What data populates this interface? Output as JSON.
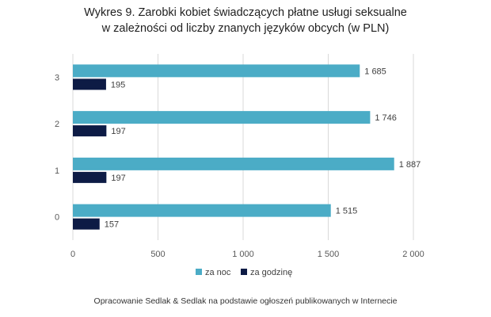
{
  "chart_data": {
    "type": "bar",
    "orientation": "horizontal",
    "title_line1": "Wykres 9. Zarobki kobiet świadczących płatne usługi seksualne",
    "title_line2": "w zależności od liczby znanych języków obcych (w PLN)",
    "categories": [
      "0",
      "1",
      "2",
      "3"
    ],
    "series": [
      {
        "name": "za noc",
        "color": "#4BACC6",
        "values": [
          1515,
          1887,
          1746,
          1685
        ],
        "labels": [
          "1 515",
          "1 887",
          "1 746",
          "1 685"
        ]
      },
      {
        "name": "za godzinę",
        "color": "#0D1B45",
        "values": [
          157,
          197,
          197,
          195
        ],
        "labels": [
          "157",
          "197",
          "197",
          "195"
        ]
      }
    ],
    "xlim": [
      0,
      2000
    ],
    "xticks": [
      0,
      500,
      1000,
      1500,
      2000
    ],
    "xtick_labels": [
      "0",
      "500",
      "1 000",
      "1 500",
      "2 000"
    ],
    "xlabel": "",
    "ylabel": "",
    "grid": true,
    "legend_position": "bottom"
  },
  "source": "Opracowanie Sedlak & Sedlak na podstawie ogłoszeń publikowanych w Internecie"
}
